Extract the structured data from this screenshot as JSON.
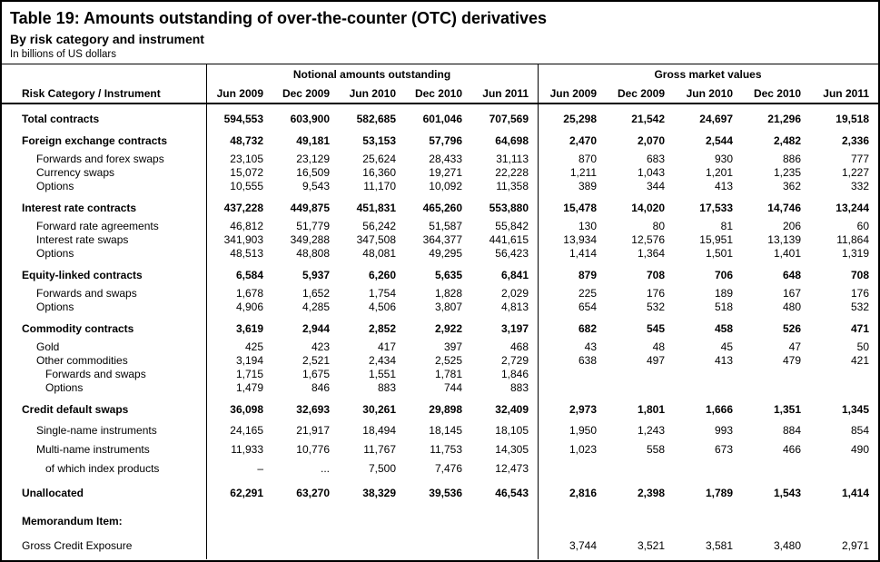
{
  "title": "Table 19: Amounts outstanding of over-the-counter (OTC) derivatives",
  "subtitle": "By risk category and instrument",
  "unit_note": "In billions of US dollars",
  "table": {
    "row_header": "Risk Category / Instrument",
    "groups": [
      {
        "label": "Notional amounts outstanding",
        "columns": [
          "Jun 2009",
          "Dec 2009",
          "Jun 2010",
          "Dec 2010",
          "Jun 2011"
        ]
      },
      {
        "label": "Gross market values",
        "columns": [
          "Jun 2009",
          "Dec 2009",
          "Jun 2010",
          "Dec 2010",
          "Jun 2011"
        ]
      }
    ],
    "rows": [
      {
        "label": "Total contracts",
        "level": 0,
        "section": true,
        "bold": true,
        "notional": [
          "594,553",
          "603,900",
          "582,685",
          "601,046",
          "707,569"
        ],
        "gross": [
          "25,298",
          "21,542",
          "24,697",
          "21,296",
          "19,518"
        ]
      },
      {
        "label": "Foreign exchange contracts",
        "level": 0,
        "section": true,
        "bold": true,
        "notional": [
          "48,732",
          "49,181",
          "53,153",
          "57,796",
          "64,698"
        ],
        "gross": [
          "2,470",
          "2,070",
          "2,544",
          "2,482",
          "2,336"
        ]
      },
      {
        "label": "Forwards and forex swaps",
        "level": 1,
        "notional": [
          "23,105",
          "23,129",
          "25,624",
          "28,433",
          "31,113"
        ],
        "gross": [
          "870",
          "683",
          "930",
          "886",
          "777"
        ]
      },
      {
        "label": "Currency swaps",
        "level": 1,
        "notional": [
          "15,072",
          "16,509",
          "16,360",
          "19,271",
          "22,228"
        ],
        "gross": [
          "1,211",
          "1,043",
          "1,201",
          "1,235",
          "1,227"
        ]
      },
      {
        "label": "Options",
        "level": 1,
        "notional": [
          "10,555",
          "9,543",
          "11,170",
          "10,092",
          "11,358"
        ],
        "gross": [
          "389",
          "344",
          "413",
          "362",
          "332"
        ]
      },
      {
        "label": "Interest rate contracts",
        "level": 0,
        "section": true,
        "bold": true,
        "notional": [
          "437,228",
          "449,875",
          "451,831",
          "465,260",
          "553,880"
        ],
        "gross": [
          "15,478",
          "14,020",
          "17,533",
          "14,746",
          "13,244"
        ]
      },
      {
        "label": "Forward rate agreements",
        "level": 1,
        "notional": [
          "46,812",
          "51,779",
          "56,242",
          "51,587",
          "55,842"
        ],
        "gross": [
          "130",
          "80",
          "81",
          "206",
          "60"
        ]
      },
      {
        "label": "Interest rate swaps",
        "level": 1,
        "notional": [
          "341,903",
          "349,288",
          "347,508",
          "364,377",
          "441,615"
        ],
        "gross": [
          "13,934",
          "12,576",
          "15,951",
          "13,139",
          "11,864"
        ]
      },
      {
        "label": "Options",
        "level": 1,
        "notional": [
          "48,513",
          "48,808",
          "48,081",
          "49,295",
          "56,423"
        ],
        "gross": [
          "1,414",
          "1,364",
          "1,501",
          "1,401",
          "1,319"
        ]
      },
      {
        "label": "Equity-linked contracts",
        "level": 0,
        "section": true,
        "bold": true,
        "notional": [
          "6,584",
          "5,937",
          "6,260",
          "5,635",
          "6,841"
        ],
        "gross": [
          "879",
          "708",
          "706",
          "648",
          "708"
        ]
      },
      {
        "label": "Forwards and swaps",
        "level": 1,
        "notional": [
          "1,678",
          "1,652",
          "1,754",
          "1,828",
          "2,029"
        ],
        "gross": [
          "225",
          "176",
          "189",
          "167",
          "176"
        ]
      },
      {
        "label": "Options",
        "level": 1,
        "notional": [
          "4,906",
          "4,285",
          "4,506",
          "3,807",
          "4,813"
        ],
        "gross": [
          "654",
          "532",
          "518",
          "480",
          "532"
        ]
      },
      {
        "label": "Commodity contracts",
        "level": 0,
        "section": true,
        "bold": true,
        "notional": [
          "3,619",
          "2,944",
          "2,852",
          "2,922",
          "3,197"
        ],
        "gross": [
          "682",
          "545",
          "458",
          "526",
          "471"
        ]
      },
      {
        "label": "Gold",
        "level": 1,
        "notional": [
          "425",
          "423",
          "417",
          "397",
          "468"
        ],
        "gross": [
          "43",
          "48",
          "45",
          "47",
          "50"
        ]
      },
      {
        "label": "Other commodities",
        "level": 1,
        "notional": [
          "3,194",
          "2,521",
          "2,434",
          "2,525",
          "2,729"
        ],
        "gross": [
          "638",
          "497",
          "413",
          "479",
          "421"
        ]
      },
      {
        "label": "Forwards and swaps",
        "level": 2,
        "notional": [
          "1,715",
          "1,675",
          "1,551",
          "1,781",
          "1,846"
        ],
        "gross": [
          "",
          "",
          "",
          "",
          ""
        ]
      },
      {
        "label": "Options",
        "level": 2,
        "notional": [
          "1,479",
          "846",
          "883",
          "744",
          "883"
        ],
        "gross": [
          "",
          "",
          "",
          "",
          ""
        ]
      },
      {
        "label": "Credit default swaps",
        "level": 0,
        "section": true,
        "bold": true,
        "notional": [
          "36,098",
          "32,693",
          "30,261",
          "29,898",
          "32,409"
        ],
        "gross": [
          "2,973",
          "1,801",
          "1,666",
          "1,351",
          "1,345"
        ]
      },
      {
        "label": "Single-name instruments",
        "level": 1,
        "loose": true,
        "notional": [
          "24,165",
          "21,917",
          "18,494",
          "18,145",
          "18,105"
        ],
        "gross": [
          "1,950",
          "1,243",
          "993",
          "884",
          "854"
        ]
      },
      {
        "label": "Multi-name instruments",
        "level": 1,
        "loose": true,
        "notional": [
          "11,933",
          "10,776",
          "11,767",
          "11,753",
          "14,305"
        ],
        "gross": [
          "1,023",
          "558",
          "673",
          "466",
          "490"
        ]
      },
      {
        "label": "of which index products",
        "level": 2,
        "loose": true,
        "notional": [
          "–",
          "...",
          "7,500",
          "7,476",
          "12,473"
        ],
        "gross": [
          "",
          "",
          "",
          "",
          ""
        ]
      },
      {
        "label": "Unallocated",
        "level": 0,
        "section": true,
        "bold": true,
        "notional": [
          "62,291",
          "63,270",
          "38,329",
          "39,536",
          "46,543"
        ],
        "gross": [
          "2,816",
          "2,398",
          "1,789",
          "1,543",
          "1,414"
        ]
      },
      {
        "label": "Memorandum Item:",
        "level": 0,
        "memo": true,
        "bold": true,
        "notional": [
          "",
          "",
          "",
          "",
          ""
        ],
        "gross": [
          "",
          "",
          "",
          "",
          ""
        ]
      },
      {
        "label": "Gross Credit Exposure",
        "level": 0,
        "last": true,
        "notional": [
          "",
          "",
          "",
          "",
          ""
        ],
        "gross": [
          "3,744",
          "3,521",
          "3,581",
          "3,480",
          "2,971"
        ]
      }
    ]
  }
}
